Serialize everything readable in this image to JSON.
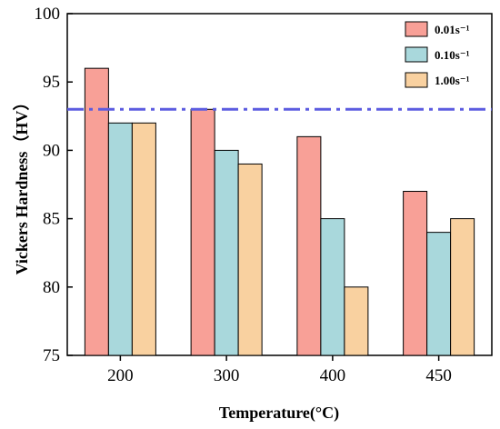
{
  "chart_data": {
    "type": "bar",
    "xlabel": "Temperature(°C)",
    "ylabel": "Vickers Hardness（HV）",
    "categories": [
      "200",
      "300",
      "400",
      "450"
    ],
    "series": [
      {
        "name": "0.01s⁻¹",
        "values": [
          96,
          93,
          91,
          87
        ],
        "color": "#f8a097"
      },
      {
        "name": "0.10s⁻¹",
        "values": [
          92,
          90,
          85,
          84
        ],
        "color": "#a9d8dc"
      },
      {
        "name": "1.00s⁻¹",
        "values": [
          92,
          89,
          80,
          85
        ],
        "color": "#f9d1a0"
      }
    ],
    "ylim": [
      75,
      100
    ],
    "yticks": [
      75,
      80,
      85,
      90,
      95,
      100
    ],
    "reference_line": {
      "value": 93,
      "style": "dash-dot",
      "color": "#5c5ce0"
    },
    "grid": false,
    "legend_position": "top-right"
  }
}
